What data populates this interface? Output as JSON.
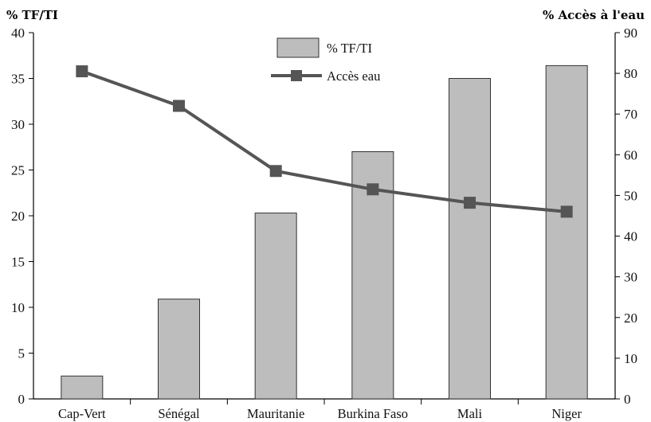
{
  "chart_data": {
    "type": "bar",
    "categories": [
      "Cap-Vert",
      "Sénégal",
      "Mauritanie",
      "Burkina Faso",
      "Mali",
      "Niger"
    ],
    "left_axis_title": "% TF/TI",
    "right_axis_title": "% Accès à l'eau",
    "ylim_left": [
      0,
      40
    ],
    "yticks_left": [
      0,
      5,
      10,
      15,
      20,
      25,
      30,
      35,
      40
    ],
    "ylim_right": [
      0,
      90
    ],
    "yticks_right": [
      0,
      10,
      20,
      30,
      40,
      50,
      60,
      70,
      80,
      90
    ],
    "series": [
      {
        "name": "% TF/TI",
        "type": "bar",
        "axis": "left",
        "color": "#bdbdbd",
        "values": [
          2.5,
          10.9,
          20.3,
          27.0,
          35.0,
          36.4
        ]
      },
      {
        "name": "Accès eau",
        "type": "line",
        "axis": "right",
        "color": "#555555",
        "marker": "square",
        "values": [
          80.5,
          72.0,
          56.0,
          51.5,
          48.2,
          46.0
        ]
      }
    ],
    "legend_position": "top-center",
    "grid": false
  }
}
